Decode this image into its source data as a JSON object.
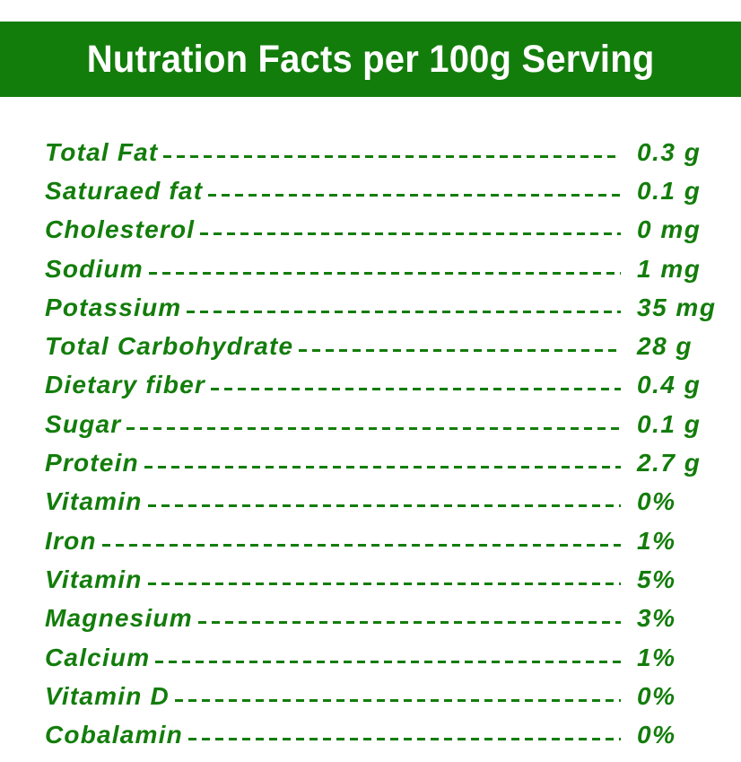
{
  "header": {
    "title": "Nutration Facts per 100g Serving"
  },
  "colors": {
    "brand_green": "#137d0b",
    "background": "#ffffff"
  },
  "nutrients": [
    {
      "label": "Total Fat",
      "value": "0.3 g"
    },
    {
      "label": "Saturaed fat",
      "value": "0.1 g"
    },
    {
      "label": "Cholesterol",
      "value": "0 mg"
    },
    {
      "label": "Sodium",
      "value": "1 mg"
    },
    {
      "label": "Potassium",
      "value": "35 mg"
    },
    {
      "label": "Total Carbohydrate",
      "value": "28 g"
    },
    {
      "label": "Dietary fiber",
      "value": "0.4 g"
    },
    {
      "label": "Sugar",
      "value": "0.1 g"
    },
    {
      "label": "Protein",
      "value": "2.7 g"
    },
    {
      "label": "Vitamin",
      "value": "0%"
    },
    {
      "label": "Iron",
      "value": "1%"
    },
    {
      "label": "Vitamin",
      "value": "5%"
    },
    {
      "label": "Magnesium",
      "value": "3%"
    },
    {
      "label": "Calcium",
      "value": "1%"
    },
    {
      "label": "Vitamin D",
      "value": "0%"
    },
    {
      "label": "Cobalamin",
      "value": "0%"
    }
  ]
}
